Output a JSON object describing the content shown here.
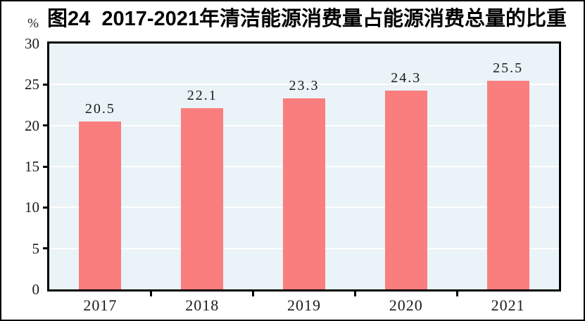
{
  "figure": {
    "caption": "图24  2017-2021年清洁能源消费量占能源消费总量的比重"
  },
  "chart_data": {
    "type": "bar",
    "title": "图24  2017-2021年清洁能源消费量占能源消费总量的比重",
    "categories": [
      "2017",
      "2018",
      "2019",
      "2020",
      "2021"
    ],
    "values": [
      20.5,
      22.1,
      23.3,
      24.3,
      25.5
    ],
    "value_labels": [
      "20.5",
      "22.1",
      "23.3",
      "24.3",
      "25.5"
    ],
    "xlabel": "",
    "ylabel": "%",
    "ylim": [
      0,
      30
    ],
    "yticks": [
      0,
      5,
      10,
      15,
      20,
      25,
      30
    ],
    "grid": true,
    "legend_position": "none",
    "colors": {
      "bar": "#FA7E7E",
      "plot_background": "#EAF3F7",
      "gridline": "#FFFFFF",
      "axis": "#000000",
      "text": "#1A1A1A"
    }
  }
}
